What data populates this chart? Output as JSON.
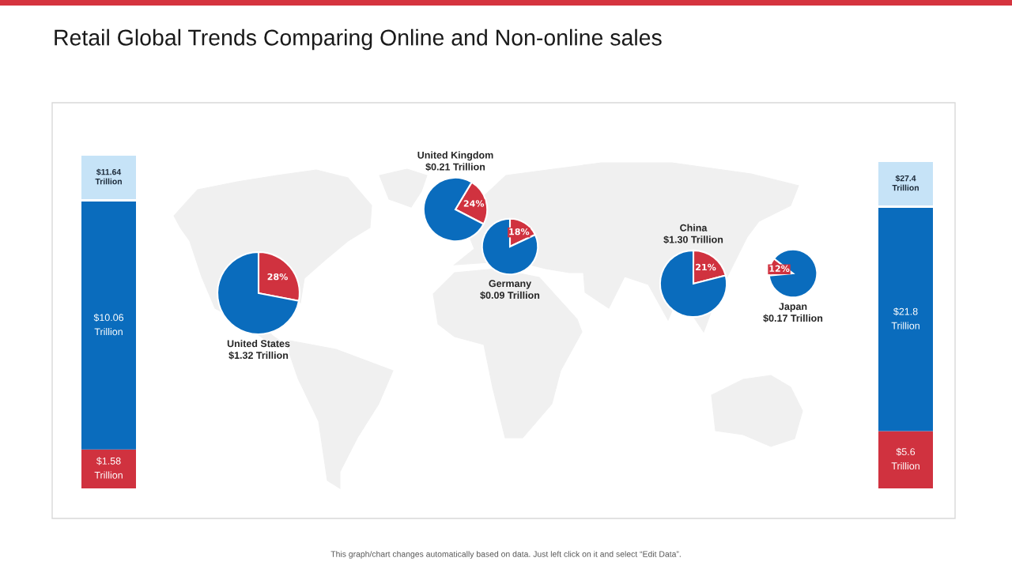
{
  "chart_data": [
    {
      "type": "bar",
      "title": "Retail Global Trends Comparing Online and Non-online sales",
      "annotations": [
        "This graph/chart changes automatically based on data. Just left click on it and select “Edit Data”."
      ],
      "stacked": true,
      "categories": [
        null
      ],
      "series": [
        {
          "color": "#d0323f",
          "values": [
            1.58
          ],
          "value_labels": [
            "$1.58\nTrillion"
          ]
        },
        {
          "color": "#0a6cbd",
          "values": [
            10.06
          ],
          "value_labels": [
            "$10.06\nTrillion"
          ]
        }
      ],
      "totals": [
        "$11.64\nTrillion"
      ]
    },
    {
      "type": "pie",
      "title": "United States\n$1.32 Trillion",
      "categories": [
        null,
        null
      ],
      "values": [
        28,
        72
      ],
      "colors": [
        "#d0323f",
        "#0a6cbd"
      ],
      "value_labels": [
        "28%",
        null
      ]
    },
    {
      "type": "pie",
      "title": "United Kingdom\n$0.21 Trillion",
      "categories": [
        null,
        null
      ],
      "values": [
        24,
        76
      ],
      "colors": [
        "#d0323f",
        "#0a6cbd"
      ],
      "value_labels": [
        "24%",
        null
      ]
    },
    {
      "type": "pie",
      "title": "Germany\n$0.09 Trillion",
      "categories": [
        null,
        null
      ],
      "values": [
        18,
        82
      ],
      "colors": [
        "#d0323f",
        "#0a6cbd"
      ],
      "value_labels": [
        "18%",
        null
      ]
    },
    {
      "type": "pie",
      "title": "China\n$1.30 Trillion",
      "categories": [
        null,
        null
      ],
      "values": [
        21,
        79
      ],
      "colors": [
        "#d0323f",
        "#0a6cbd"
      ],
      "value_labels": [
        "21%",
        null
      ]
    },
    {
      "type": "pie",
      "title": "Japan\n$0.17 Trillion",
      "categories": [
        null,
        null
      ],
      "values": [
        12,
        88
      ],
      "colors": [
        "#d0323f",
        "#0a6cbd"
      ],
      "value_labels": [
        "12%",
        null
      ]
    },
    {
      "type": "bar",
      "stacked": true,
      "categories": [
        null
      ],
      "series": [
        {
          "color": "#d0323f",
          "values": [
            5.6
          ],
          "value_labels": [
            "$5.6\nTrillion"
          ]
        },
        {
          "color": "#0a6cbd",
          "values": [
            21.8
          ],
          "value_labels": [
            "$21.8\nTrillion"
          ]
        }
      ],
      "totals": [
        "$27.4\nTrillion"
      ]
    }
  ]
}
